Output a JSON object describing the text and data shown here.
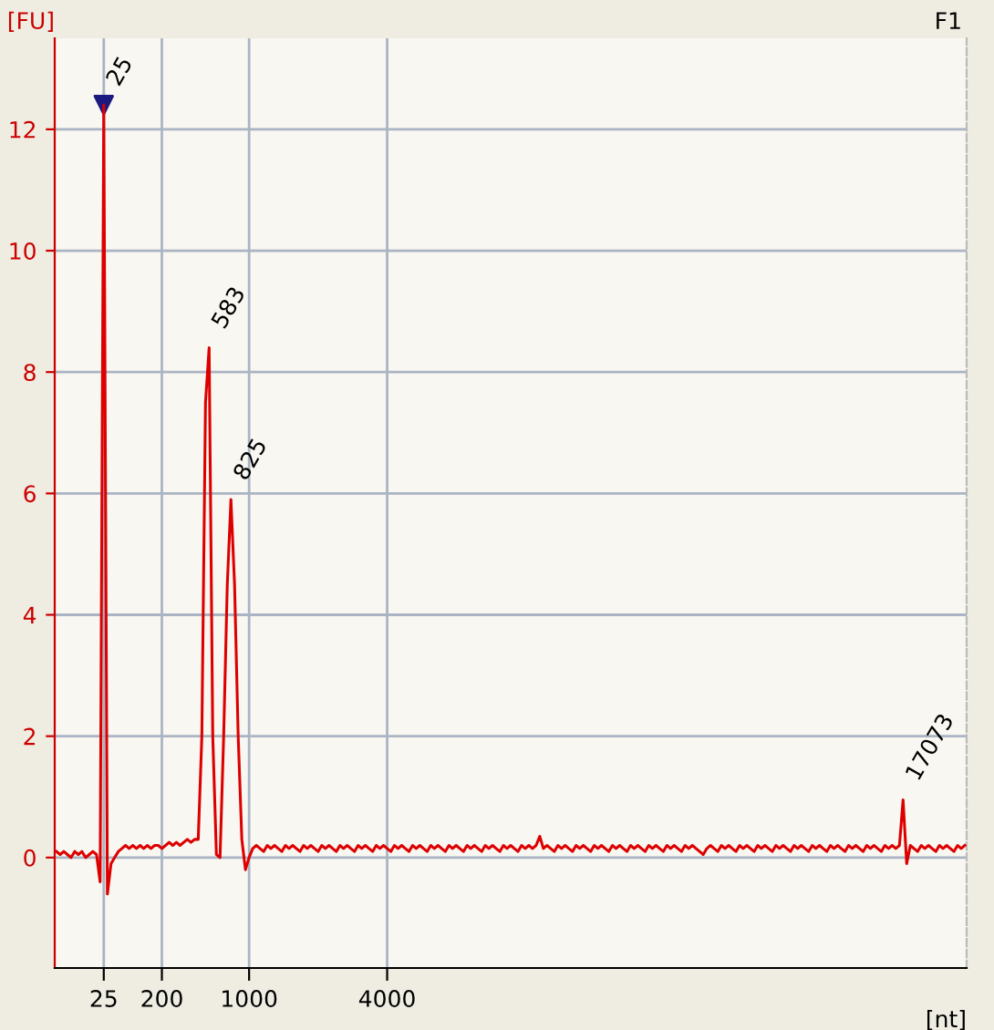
{
  "chart_data": {
    "type": "line",
    "xlabel": "[nt]",
    "ylabel": "[FU]",
    "categories": [
      null,
      null,
      null,
      null,
      null,
      null,
      null,
      null,
      null,
      null,
      null,
      null,
      null,
      "25",
      null,
      null,
      null,
      null,
      null,
      null,
      null,
      null,
      null,
      null,
      null,
      null,
      null,
      null,
      null,
      "200",
      null,
      null,
      null,
      null,
      null,
      null,
      null,
      null,
      null,
      null,
      null,
      null,
      null,
      null,
      null,
      null,
      null,
      null,
      null,
      null,
      null,
      null,
      null,
      "1000",
      null,
      null,
      null,
      null,
      null,
      null,
      null,
      null,
      null,
      null,
      null,
      null,
      null,
      null,
      null,
      null,
      null,
      null,
      null,
      null,
      null,
      null,
      null,
      null,
      null,
      null,
      null,
      null,
      null,
      null,
      null,
      null,
      null,
      null,
      null,
      null,
      null,
      "4000",
      null,
      null,
      null,
      null,
      null,
      null,
      null,
      null,
      null,
      null,
      null,
      null,
      null,
      null,
      null,
      null,
      null,
      null,
      null,
      null,
      null,
      null,
      null,
      null,
      null,
      null,
      null,
      null,
      null,
      null,
      null,
      null,
      null,
      null,
      null,
      null,
      null,
      null,
      null,
      null,
      null,
      null,
      null,
      null,
      null,
      null,
      null,
      null,
      null,
      null,
      null,
      null,
      null,
      null,
      null,
      null,
      null,
      null,
      null,
      null,
      null,
      null,
      null,
      null,
      null,
      null,
      null,
      null,
      null,
      null,
      null,
      null,
      null,
      null,
      null,
      null,
      null,
      null,
      null,
      null,
      null,
      null,
      null,
      null,
      null,
      null,
      null,
      null,
      null,
      null,
      null,
      null,
      null,
      null,
      null,
      null,
      null,
      null,
      null,
      null,
      null,
      null,
      null,
      null,
      null,
      null,
      null,
      null,
      null,
      null,
      null,
      null,
      null,
      null,
      null,
      null,
      null,
      null,
      null,
      null,
      null,
      null,
      null,
      null,
      null,
      null,
      null,
      null,
      null,
      null,
      null,
      null,
      null,
      null,
      null,
      null,
      null,
      null,
      null,
      null,
      null,
      null,
      null,
      null,
      null,
      null,
      null,
      null,
      null,
      null,
      null,
      null,
      null,
      null,
      null,
      null,
      null,
      null,
      null
    ],
    "ylim": [
      -1.82,
      13.5
    ],
    "yticks": [
      0,
      2,
      4,
      6,
      8,
      10,
      12
    ],
    "grid": true,
    "series": [
      {
        "color": "#dd0000",
        "line_style": "solid",
        "marker": "none",
        "values": [
          0.1,
          0.05,
          0.1,
          0.05,
          0.0,
          0.1,
          0.05,
          0.1,
          0.0,
          0.05,
          0.1,
          0.05,
          -0.4,
          12.4,
          -0.6,
          -0.1,
          0.0,
          0.1,
          0.15,
          0.2,
          0.15,
          0.2,
          0.15,
          0.2,
          0.15,
          0.2,
          0.15,
          0.2,
          0.2,
          0.15,
          0.2,
          0.25,
          0.2,
          0.25,
          0.2,
          0.25,
          0.3,
          0.25,
          0.3,
          0.3,
          2.0,
          7.5,
          8.4,
          2.0,
          0.05,
          0.0,
          2.0,
          4.5,
          5.9,
          4.5,
          2.0,
          0.3,
          -0.2,
          0.0,
          0.15,
          0.2,
          0.15,
          0.1,
          0.2,
          0.15,
          0.2,
          0.15,
          0.1,
          0.2,
          0.15,
          0.2,
          0.15,
          0.1,
          0.2,
          0.15,
          0.2,
          0.15,
          0.1,
          0.2,
          0.15,
          0.2,
          0.15,
          0.1,
          0.2,
          0.15,
          0.2,
          0.15,
          0.1,
          0.2,
          0.15,
          0.2,
          0.15,
          0.1,
          0.2,
          0.15,
          0.2,
          0.15,
          0.1,
          0.2,
          0.15,
          0.2,
          0.15,
          0.1,
          0.2,
          0.15,
          0.2,
          0.15,
          0.1,
          0.2,
          0.15,
          0.2,
          0.15,
          0.1,
          0.2,
          0.15,
          0.2,
          0.15,
          0.1,
          0.2,
          0.15,
          0.2,
          0.15,
          0.1,
          0.2,
          0.15,
          0.2,
          0.15,
          0.1,
          0.2,
          0.15,
          0.2,
          0.15,
          0.1,
          0.2,
          0.15,
          0.2,
          0.15,
          0.2,
          0.35,
          0.15,
          0.2,
          0.15,
          0.1,
          0.2,
          0.15,
          0.2,
          0.15,
          0.1,
          0.2,
          0.15,
          0.2,
          0.15,
          0.1,
          0.2,
          0.15,
          0.2,
          0.15,
          0.1,
          0.2,
          0.15,
          0.2,
          0.15,
          0.1,
          0.2,
          0.15,
          0.2,
          0.15,
          0.1,
          0.2,
          0.15,
          0.2,
          0.15,
          0.1,
          0.2,
          0.15,
          0.2,
          0.15,
          0.1,
          0.2,
          0.15,
          0.2,
          0.15,
          0.1,
          0.05,
          0.15,
          0.2,
          0.15,
          0.1,
          0.2,
          0.15,
          0.2,
          0.15,
          0.1,
          0.2,
          0.15,
          0.2,
          0.15,
          0.1,
          0.2,
          0.15,
          0.2,
          0.15,
          0.1,
          0.2,
          0.15,
          0.2,
          0.15,
          0.1,
          0.2,
          0.15,
          0.2,
          0.15,
          0.1,
          0.2,
          0.15,
          0.2,
          0.15,
          0.1,
          0.2,
          0.15,
          0.2,
          0.15,
          0.1,
          0.2,
          0.15,
          0.2,
          0.15,
          0.1,
          0.2,
          0.15,
          0.2,
          0.15,
          0.1,
          0.2,
          0.15,
          0.2,
          0.15,
          0.2,
          0.95,
          -0.1,
          0.2,
          0.15,
          0.1,
          0.2,
          0.15,
          0.2,
          0.15,
          0.1,
          0.2,
          0.15,
          0.2,
          0.15,
          0.1,
          0.2,
          0.15,
          0.2
        ]
      },
      {
        "type": "scatter",
        "color": "#1a1a80",
        "marker": "triangle",
        "x": [
          "25"
        ],
        "values": [
          12.4
        ]
      }
    ],
    "annotations": [
      "25",
      "583",
      "825",
      "17073",
      "F1"
    ]
  }
}
